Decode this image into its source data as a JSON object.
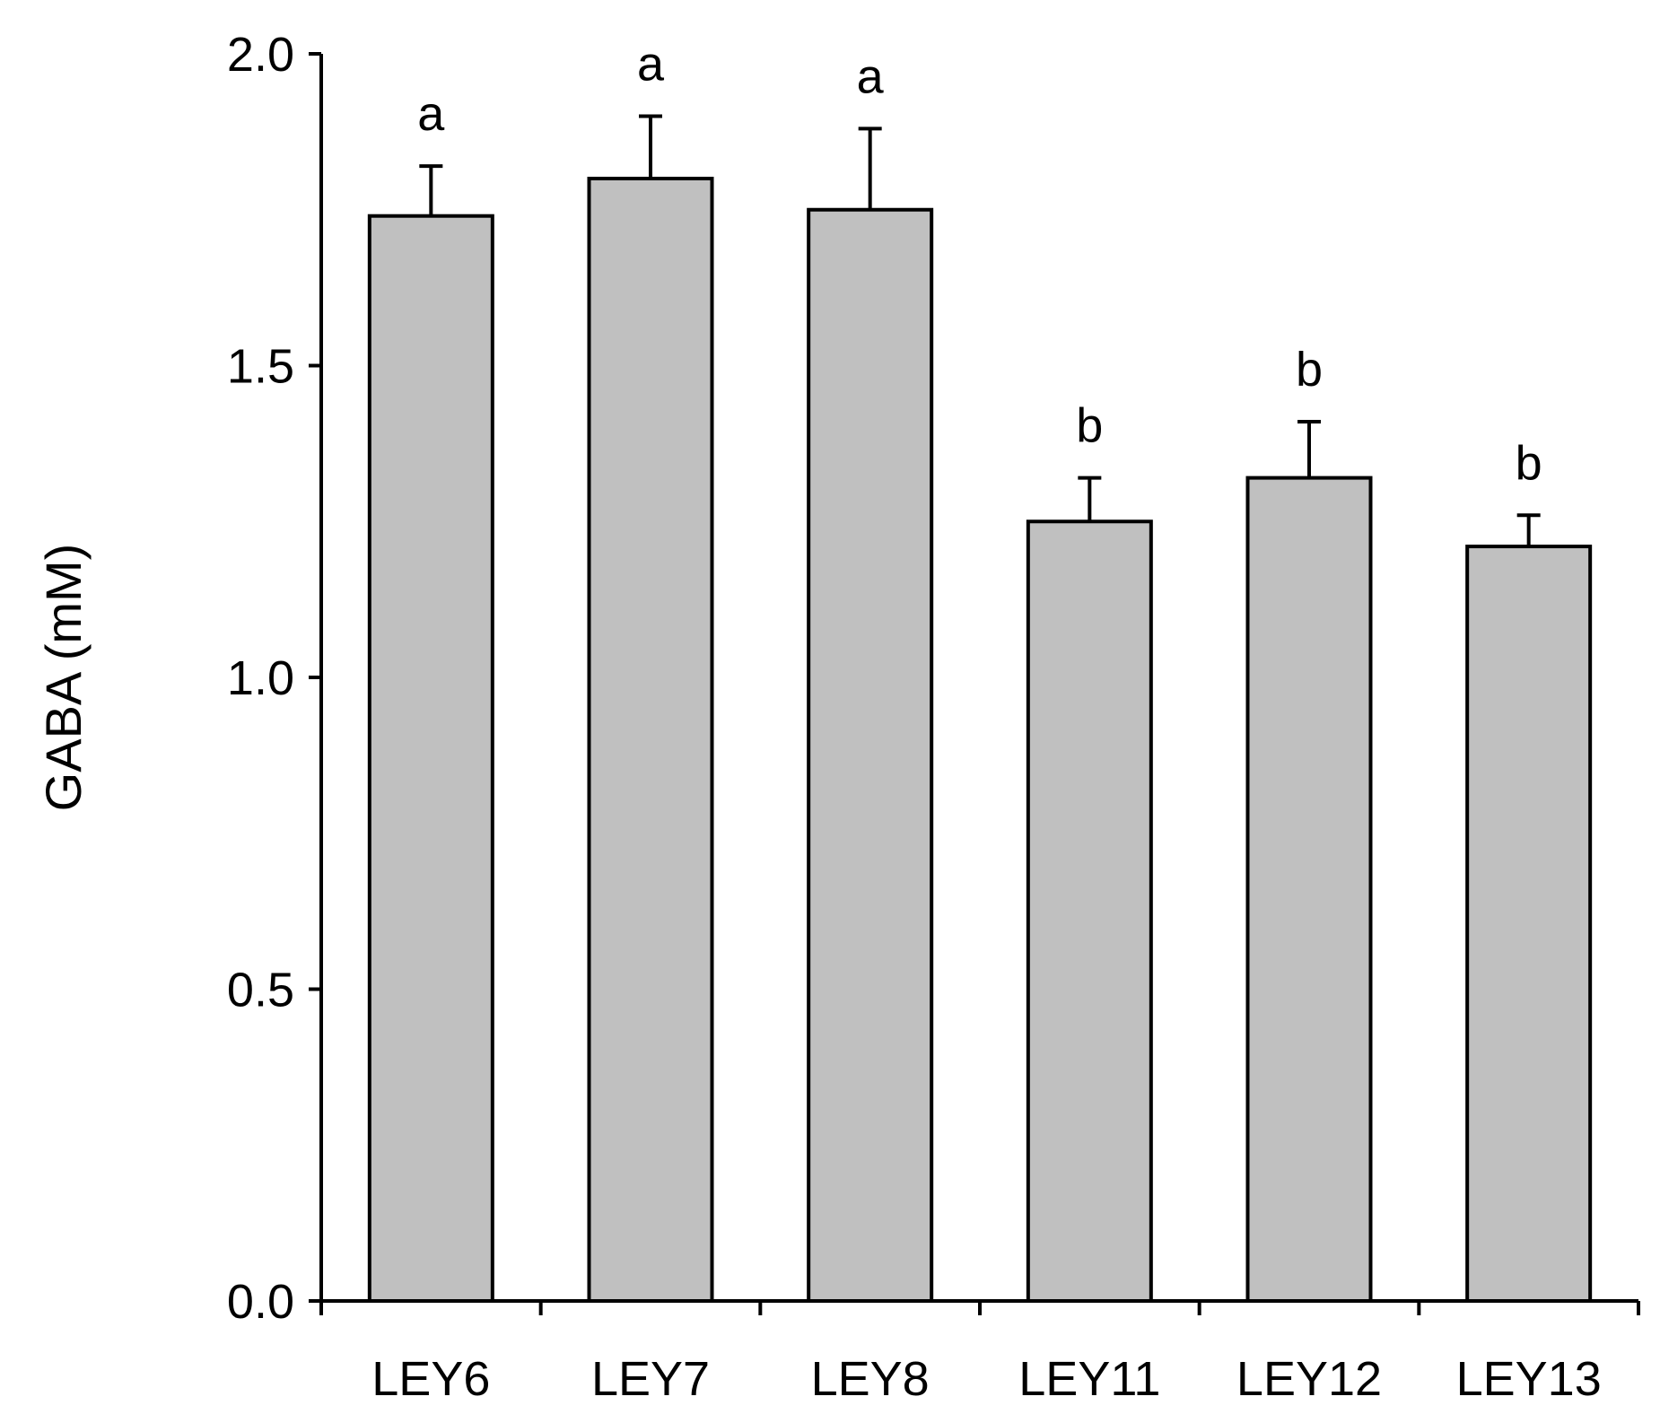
{
  "chart_data": {
    "type": "bar",
    "title": "",
    "xlabel": "",
    "ylabel": "GABA (mM)",
    "categories": [
      "LEY6",
      "LEY7",
      "LEY8",
      "LEY11",
      "LEY12",
      "LEY13"
    ],
    "values": [
      1.74,
      1.8,
      1.75,
      1.25,
      1.32,
      1.21
    ],
    "error_plus": [
      0.08,
      0.1,
      0.13,
      0.07,
      0.09,
      0.05
    ],
    "significance_letters": [
      "a",
      "a",
      "a",
      "b",
      "b",
      "b"
    ],
    "ylim": [
      0.0,
      2.0
    ],
    "yticks": [
      "0.0",
      "0.5",
      "1.0",
      "1.5",
      "2.0"
    ],
    "grid": false,
    "legend": "none",
    "colors": {
      "bar_fill": "#c0c0c0",
      "bar_stroke": "#000000",
      "axis": "#000000",
      "text": "#000000"
    }
  }
}
